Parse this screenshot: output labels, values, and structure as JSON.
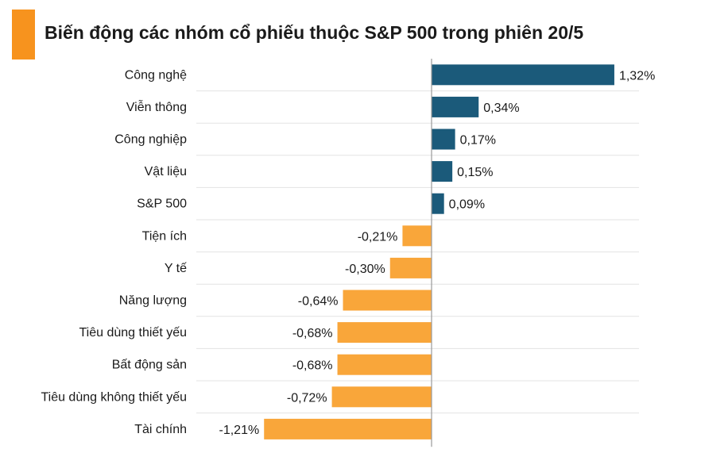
{
  "chart_data": {
    "type": "bar",
    "orientation": "horizontal",
    "title": "Biến động các nhóm cổ phiếu thuộc S&P 500 trong phiên 20/5",
    "categories": [
      "Công nghệ",
      "Viễn thông",
      "Công nghiệp",
      "Vật liệu",
      "S&P 500",
      "Tiện ích",
      "Y tế",
      "Năng lượng",
      "Tiêu dùng thiết yếu",
      "Bất động sản",
      "Tiêu dùng không thiết yếu",
      "Tài chính"
    ],
    "values": [
      1.32,
      0.34,
      0.17,
      0.15,
      0.09,
      -0.21,
      -0.3,
      -0.64,
      -0.68,
      -0.68,
      -0.72,
      -1.21
    ],
    "value_labels": [
      "1,32%",
      "0,34%",
      "0,17%",
      "0,15%",
      "0,09%",
      "-0,21%",
      "-0,30%",
      "-0,64%",
      "-0,68%",
      "-0,68%",
      "-0,72%",
      "-1,21%"
    ],
    "xlim": [
      -1.65,
      1.5
    ],
    "grid": true,
    "colors": {
      "positive": "#1b5a7a",
      "negative": "#f9a63a",
      "accent": "#f7931e",
      "grid": "#e3e3e3",
      "axis": "#999999"
    }
  }
}
